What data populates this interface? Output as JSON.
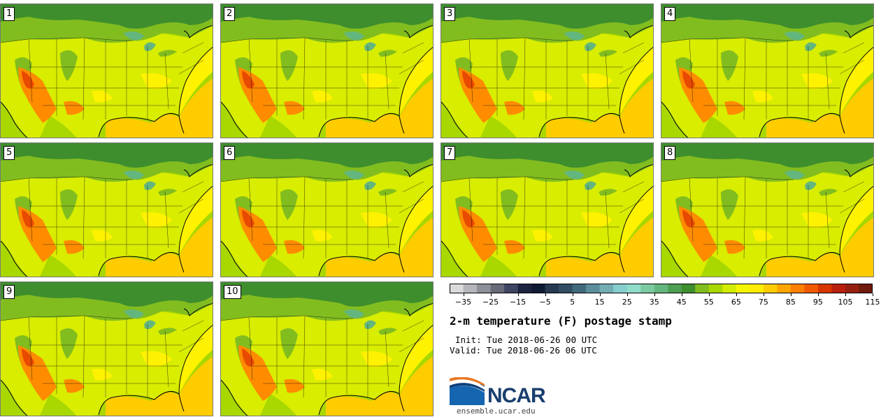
{
  "title": "2-m temperature (F) postage stamp",
  "init_text": "Init: Tue 2018-06-26 00 UTC",
  "valid_text": "Valid: Tue 2018-06-26 06 UTC",
  "site": "ensemble.ucar.edu",
  "logo_text": "NCAR",
  "members": [
    "1",
    "2",
    "3",
    "4",
    "5",
    "6",
    "7",
    "8",
    "9",
    "10"
  ],
  "colorbar": {
    "colors": [
      "#d9dadc",
      "#b4b6bb",
      "#8e9099",
      "#676a78",
      "#3e4461",
      "#1d2440",
      "#0f1a33",
      "#26394f",
      "#314d63",
      "#406a7c",
      "#5b8e9a",
      "#73adb4",
      "#86cdcd",
      "#8fdccb",
      "#7ccba0",
      "#64b67f",
      "#4c9f53",
      "#3e8e2e",
      "#82bd1f",
      "#a9d700",
      "#d2ec00",
      "#f6f500",
      "#ffec00",
      "#ffcc00",
      "#ffa500",
      "#ff7f00",
      "#f05a00",
      "#d83600",
      "#b81f0c",
      "#962010",
      "#6f1a0c"
    ],
    "tick_labels": [
      "−35",
      "−25",
      "−15",
      "−5",
      "5",
      "15",
      "25",
      "35",
      "45",
      "55",
      "65",
      "75",
      "85",
      "95",
      "105",
      "115"
    ],
    "min": -40,
    "max": 115
  },
  "map_colors": {
    "ocean_warm": "#ffcc00",
    "ocean_mid": "#fff200",
    "ocean_cool": "#a9d700",
    "land_base": "#d8ed00",
    "land_north": "#82bd1f",
    "canada": "#3e8e2e",
    "lakes": "#64b67f",
    "hot": "#ff8c00",
    "hotter": "#e84a00"
  }
}
